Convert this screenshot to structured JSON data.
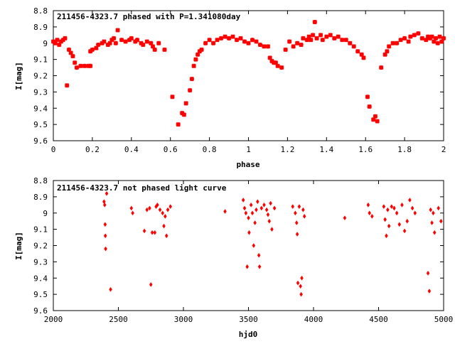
{
  "chart_data": [
    {
      "type": "scatter",
      "title": "211456-4323.7 phased with P=1.341080day",
      "xlabel": "phase",
      "ylabel": "I[mag]",
      "xlim": [
        0,
        2
      ],
      "ylim": [
        8.8,
        9.6
      ],
      "y_inverted": true,
      "xticks": [
        "0",
        "0.2",
        "0.4",
        "0.6",
        "0.8",
        "1",
        "1.2",
        "1.4",
        "1.6",
        "1.8",
        "2"
      ],
      "yticks": [
        "8.8",
        "8.9",
        "9",
        "9.1",
        "9.2",
        "9.3",
        "9.4",
        "9.5",
        "9.6"
      ],
      "marker_color": "#ff0000",
      "marker": "cross",
      "grid": false,
      "points": [
        [
          0.0,
          8.99
        ],
        [
          0.01,
          9.0
        ],
        [
          0.02,
          8.98
        ],
        [
          0.03,
          9.01
        ],
        [
          0.04,
          8.99
        ],
        [
          0.05,
          8.98
        ],
        [
          0.06,
          8.97
        ],
        [
          0.07,
          9.26
        ],
        [
          0.08,
          9.04
        ],
        [
          0.09,
          9.06
        ],
        [
          0.1,
          9.08
        ],
        [
          0.11,
          9.12
        ],
        [
          0.12,
          9.15
        ],
        [
          0.14,
          9.14
        ],
        [
          0.16,
          9.14
        ],
        [
          0.18,
          9.14
        ],
        [
          0.19,
          9.14
        ],
        [
          0.19,
          9.05
        ],
        [
          0.2,
          9.04
        ],
        [
          0.22,
          9.03
        ],
        [
          0.23,
          9.01
        ],
        [
          0.25,
          9.0
        ],
        [
          0.26,
          8.99
        ],
        [
          0.28,
          9.01
        ],
        [
          0.29,
          9.0
        ],
        [
          0.3,
          8.98
        ],
        [
          0.31,
          8.97
        ],
        [
          0.32,
          9.0
        ],
        [
          0.33,
          8.92
        ],
        [
          0.35,
          8.98
        ],
        [
          0.37,
          8.99
        ],
        [
          0.39,
          8.98
        ],
        [
          0.4,
          8.97
        ],
        [
          0.42,
          8.99
        ],
        [
          0.43,
          8.98
        ],
        [
          0.45,
          9.0
        ],
        [
          0.46,
          9.01
        ],
        [
          0.48,
          8.99
        ],
        [
          0.5,
          9.0
        ],
        [
          0.51,
          9.02
        ],
        [
          0.52,
          9.04
        ],
        [
          0.54,
          9.0
        ],
        [
          0.57,
          9.04
        ],
        [
          0.61,
          9.33
        ],
        [
          0.64,
          9.5
        ],
        [
          0.66,
          9.43
        ],
        [
          0.67,
          9.44
        ],
        [
          0.68,
          9.37
        ],
        [
          0.7,
          9.29
        ],
        [
          0.71,
          9.22
        ],
        [
          0.72,
          9.14
        ],
        [
          0.73,
          9.1
        ],
        [
          0.74,
          9.07
        ],
        [
          0.75,
          9.05
        ],
        [
          0.76,
          9.04
        ],
        [
          0.78,
          9.0
        ],
        [
          0.8,
          8.98
        ],
        [
          0.82,
          9.0
        ],
        [
          0.84,
          8.98
        ],
        [
          0.86,
          8.97
        ],
        [
          0.88,
          8.96
        ],
        [
          0.9,
          8.97
        ],
        [
          0.92,
          8.96
        ],
        [
          0.94,
          8.98
        ],
        [
          0.96,
          8.97
        ],
        [
          0.98,
          8.99
        ],
        [
          1.0,
          9.0
        ],
        [
          1.02,
          8.98
        ],
        [
          1.04,
          8.99
        ],
        [
          1.06,
          9.01
        ],
        [
          1.08,
          9.02
        ],
        [
          1.1,
          9.02
        ],
        [
          1.11,
          9.09
        ],
        [
          1.12,
          9.11
        ],
        [
          1.13,
          9.12
        ],
        [
          1.14,
          9.12
        ],
        [
          1.15,
          9.14
        ],
        [
          1.17,
          9.15
        ],
        [
          1.19,
          9.04
        ],
        [
          1.21,
          8.99
        ],
        [
          1.23,
          9.02
        ],
        [
          1.25,
          9.0
        ],
        [
          1.27,
          9.01
        ],
        [
          1.28,
          8.97
        ],
        [
          1.3,
          8.98
        ],
        [
          1.31,
          8.96
        ],
        [
          1.32,
          8.98
        ],
        [
          1.33,
          8.95
        ],
        [
          1.34,
          8.87
        ],
        [
          1.35,
          8.97
        ],
        [
          1.37,
          8.95
        ],
        [
          1.38,
          8.98
        ],
        [
          1.4,
          8.96
        ],
        [
          1.42,
          8.95
        ],
        [
          1.44,
          8.97
        ],
        [
          1.46,
          8.96
        ],
        [
          1.48,
          8.98
        ],
        [
          1.5,
          8.98
        ],
        [
          1.52,
          9.0
        ],
        [
          1.54,
          9.02
        ],
        [
          1.56,
          9.05
        ],
        [
          1.58,
          9.07
        ],
        [
          1.59,
          9.09
        ],
        [
          1.61,
          9.33
        ],
        [
          1.62,
          9.39
        ],
        [
          1.64,
          9.47
        ],
        [
          1.65,
          9.45
        ],
        [
          1.66,
          9.48
        ],
        [
          1.68,
          9.15
        ],
        [
          1.7,
          9.07
        ],
        [
          1.71,
          9.05
        ],
        [
          1.72,
          9.02
        ],
        [
          1.74,
          9.0
        ],
        [
          1.76,
          9.0
        ],
        [
          1.78,
          8.98
        ],
        [
          1.8,
          8.97
        ],
        [
          1.82,
          8.99
        ],
        [
          1.83,
          8.96
        ],
        [
          1.85,
          8.95
        ],
        [
          1.87,
          8.94
        ],
        [
          1.89,
          8.97
        ],
        [
          1.91,
          8.98
        ],
        [
          1.92,
          8.96
        ],
        [
          1.93,
          8.97
        ],
        [
          1.94,
          8.96
        ],
        [
          1.95,
          8.99
        ],
        [
          1.96,
          8.97
        ],
        [
          1.97,
          9.0
        ],
        [
          1.98,
          8.96
        ],
        [
          1.99,
          8.99
        ],
        [
          2.0,
          8.97
        ]
      ]
    },
    {
      "type": "scatter",
      "title": "211456-4323.7 not phased light curve",
      "xlabel": "hjd0",
      "ylabel": "I[mag]",
      "xlim": [
        2000,
        5000
      ],
      "ylim": [
        8.8,
        9.6
      ],
      "y_inverted": true,
      "xticks": [
        "2000",
        "2500",
        "3000",
        "3500",
        "4000",
        "4500",
        "5000"
      ],
      "yticks": [
        "8.8",
        "8.9",
        "9",
        "9.1",
        "9.2",
        "9.3",
        "9.4",
        "9.5",
        "9.6"
      ],
      "marker_color": "#ff0000",
      "marker": "diamond",
      "grid": false,
      "points": [
        [
          2390,
          8.93
        ],
        [
          2395,
          8.95
        ],
        [
          2398,
          9.07
        ],
        [
          2400,
          9.14
        ],
        [
          2402,
          9.22
        ],
        [
          2410,
          8.88
        ],
        [
          2440,
          9.47
        ],
        [
          2600,
          8.97
        ],
        [
          2610,
          9.0
        ],
        [
          2700,
          9.11
        ],
        [
          2720,
          8.98
        ],
        [
          2740,
          8.97
        ],
        [
          2750,
          9.44
        ],
        [
          2760,
          9.12
        ],
        [
          2780,
          9.12
        ],
        [
          2790,
          8.96
        ],
        [
          2800,
          8.95
        ],
        [
          2820,
          8.98
        ],
        [
          2840,
          9.0
        ],
        [
          2850,
          9.08
        ],
        [
          2860,
          9.02
        ],
        [
          2870,
          9.14
        ],
        [
          2880,
          8.98
        ],
        [
          2900,
          8.96
        ],
        [
          3320,
          8.99
        ],
        [
          3460,
          8.92
        ],
        [
          3470,
          8.97
        ],
        [
          3480,
          9.0
        ],
        [
          3490,
          9.33
        ],
        [
          3500,
          9.03
        ],
        [
          3505,
          9.12
        ],
        [
          3520,
          8.95
        ],
        [
          3530,
          9.0
        ],
        [
          3540,
          9.2
        ],
        [
          3550,
          9.06
        ],
        [
          3560,
          8.98
        ],
        [
          3570,
          8.93
        ],
        [
          3580,
          9.26
        ],
        [
          3585,
          9.33
        ],
        [
          3600,
          8.97
        ],
        [
          3620,
          8.95
        ],
        [
          3640,
          8.98
        ],
        [
          3650,
          9.01
        ],
        [
          3660,
          9.05
        ],
        [
          3670,
          8.94
        ],
        [
          3680,
          9.1
        ],
        [
          3700,
          8.97
        ],
        [
          3840,
          8.96
        ],
        [
          3860,
          9.0
        ],
        [
          3870,
          9.06
        ],
        [
          3875,
          9.13
        ],
        [
          3880,
          9.43
        ],
        [
          3890,
          8.96
        ],
        [
          3900,
          9.45
        ],
        [
          3905,
          9.5
        ],
        [
          3910,
          9.4
        ],
        [
          3920,
          8.98
        ],
        [
          3930,
          9.02
        ],
        [
          4240,
          9.03
        ],
        [
          4420,
          8.95
        ],
        [
          4430,
          9.0
        ],
        [
          4450,
          9.02
        ],
        [
          4540,
          8.96
        ],
        [
          4550,
          9.04
        ],
        [
          4560,
          9.14
        ],
        [
          4570,
          8.98
        ],
        [
          4580,
          9.08
        ],
        [
          4600,
          8.96
        ],
        [
          4620,
          8.97
        ],
        [
          4640,
          9.0
        ],
        [
          4660,
          9.07
        ],
        [
          4680,
          8.95
        ],
        [
          4700,
          9.11
        ],
        [
          4720,
          9.05
        ],
        [
          4740,
          8.92
        ],
        [
          4760,
          8.97
        ],
        [
          4780,
          9.0
        ],
        [
          4880,
          9.37
        ],
        [
          4890,
          9.48
        ],
        [
          4900,
          8.98
        ],
        [
          4910,
          9.06
        ],
        [
          4920,
          9.0
        ],
        [
          4930,
          9.12
        ],
        [
          4960,
          8.97
        ],
        [
          4980,
          9.05
        ]
      ]
    }
  ]
}
